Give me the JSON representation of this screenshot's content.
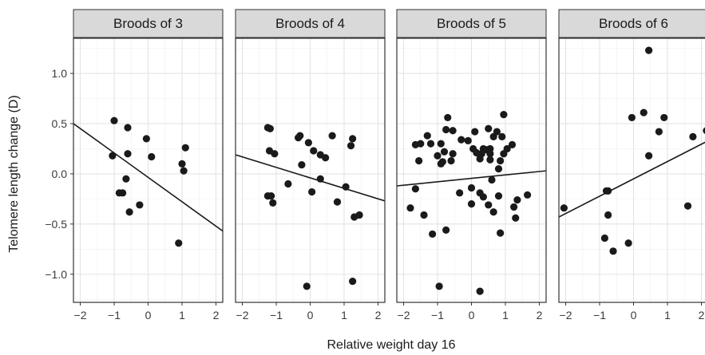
{
  "chart_data": {
    "type": "scatter",
    "xlabel": "Relative weight day 16",
    "ylabel": "Telomere length change (D)",
    "xlim": [
      -2.2,
      2.2
    ],
    "ylim": [
      -1.28,
      1.35
    ],
    "x_ticks": [
      -2,
      -1,
      0,
      1,
      2
    ],
    "y_ticks": [
      -1.0,
      -0.5,
      0.0,
      0.5,
      1.0
    ],
    "y_tick_labels": [
      "-1.0",
      "-0.5",
      "0.0",
      "0.5",
      "1.0"
    ],
    "grid": true,
    "panels": [
      {
        "title": "Broods of 3",
        "points": [
          [
            -1.0,
            0.53
          ],
          [
            -0.6,
            0.46
          ],
          [
            -0.05,
            0.35
          ],
          [
            -1.05,
            0.18
          ],
          [
            -0.6,
            0.2
          ],
          [
            0.1,
            0.17
          ],
          [
            1.1,
            0.26
          ],
          [
            1.0,
            0.1
          ],
          [
            1.05,
            0.03
          ],
          [
            -0.65,
            -0.05
          ],
          [
            -0.85,
            -0.19
          ],
          [
            -0.75,
            -0.19
          ],
          [
            -0.25,
            -0.31
          ],
          [
            -0.55,
            -0.38
          ],
          [
            0.9,
            -0.69
          ]
        ],
        "fit": [
          [
            -2.2,
            0.5
          ],
          [
            2.2,
            -0.57
          ]
        ]
      },
      {
        "title": "Broods of 4",
        "points": [
          [
            -1.25,
            0.46
          ],
          [
            -1.18,
            0.45
          ],
          [
            -0.3,
            0.38
          ],
          [
            -0.35,
            0.36
          ],
          [
            -0.05,
            0.31
          ],
          [
            0.65,
            0.38
          ],
          [
            1.25,
            0.35
          ],
          [
            1.2,
            0.28
          ],
          [
            -1.2,
            0.23
          ],
          [
            -1.05,
            0.2
          ],
          [
            0.1,
            0.23
          ],
          [
            0.3,
            0.19
          ],
          [
            0.45,
            0.16
          ],
          [
            -0.25,
            0.09
          ],
          [
            -0.65,
            -0.1
          ],
          [
            0.3,
            -0.05
          ],
          [
            1.05,
            -0.13
          ],
          [
            -1.25,
            -0.22
          ],
          [
            -1.15,
            -0.22
          ],
          [
            -1.1,
            -0.29
          ],
          [
            0.05,
            -0.18
          ],
          [
            0.8,
            -0.28
          ],
          [
            1.3,
            -0.43
          ],
          [
            1.45,
            -0.41
          ],
          [
            -0.1,
            -1.12
          ],
          [
            1.25,
            -1.07
          ]
        ],
        "fit": [
          [
            -2.2,
            0.19
          ],
          [
            2.2,
            -0.27
          ]
        ]
      },
      {
        "title": "Broods of 5",
        "points": [
          [
            -0.7,
            0.56
          ],
          [
            0.95,
            0.59
          ],
          [
            -0.75,
            0.44
          ],
          [
            -0.55,
            0.43
          ],
          [
            0.1,
            0.42
          ],
          [
            0.5,
            0.45
          ],
          [
            0.75,
            0.42
          ],
          [
            -1.3,
            0.38
          ],
          [
            0.65,
            0.37
          ],
          [
            0.9,
            0.37
          ],
          [
            -0.3,
            0.34
          ],
          [
            -0.1,
            0.33
          ],
          [
            0.05,
            0.25
          ],
          [
            -1.65,
            0.29
          ],
          [
            -1.5,
            0.3
          ],
          [
            -1.2,
            0.3
          ],
          [
            -0.9,
            0.3
          ],
          [
            0.15,
            0.21
          ],
          [
            0.45,
            0.24
          ],
          [
            0.55,
            0.25
          ],
          [
            0.35,
            0.25
          ],
          [
            1.05,
            0.25
          ],
          [
            1.2,
            0.29
          ],
          [
            -0.8,
            0.22
          ],
          [
            -1.0,
            0.18
          ],
          [
            0.3,
            0.2
          ],
          [
            0.55,
            0.2
          ],
          [
            0.95,
            0.2
          ],
          [
            -0.85,
            0.12
          ],
          [
            -0.6,
            0.13
          ],
          [
            0.55,
            0.14
          ],
          [
            0.85,
            0.13
          ],
          [
            -1.55,
            0.13
          ],
          [
            0.8,
            0.05
          ],
          [
            -0.9,
            0.1
          ],
          [
            -0.55,
            0.2
          ],
          [
            0.25,
            0.15
          ],
          [
            0.6,
            -0.06
          ],
          [
            -1.65,
            -0.15
          ],
          [
            -0.35,
            -0.19
          ],
          [
            0.0,
            -0.14
          ],
          [
            0.25,
            -0.19
          ],
          [
            0.35,
            -0.23
          ],
          [
            0.8,
            -0.22
          ],
          [
            1.65,
            -0.21
          ],
          [
            1.35,
            -0.26
          ],
          [
            1.25,
            -0.33
          ],
          [
            -1.8,
            -0.34
          ],
          [
            0.0,
            -0.3
          ],
          [
            0.5,
            -0.31
          ],
          [
            0.65,
            -0.38
          ],
          [
            1.3,
            -0.44
          ],
          [
            -1.4,
            -0.41
          ],
          [
            -1.15,
            -0.6
          ],
          [
            -0.75,
            -0.56
          ],
          [
            0.85,
            -0.59
          ],
          [
            -0.95,
            -1.12
          ],
          [
            0.25,
            -1.17
          ]
        ],
        "fit": [
          [
            -2.2,
            -0.12
          ],
          [
            2.2,
            0.03
          ]
        ]
      },
      {
        "title": "Broods of 6",
        "points": [
          [
            0.45,
            1.23
          ],
          [
            0.3,
            0.61
          ],
          [
            0.9,
            0.56
          ],
          [
            -0.05,
            0.56
          ],
          [
            0.75,
            0.42
          ],
          [
            2.15,
            0.43
          ],
          [
            1.75,
            0.37
          ],
          [
            0.45,
            0.18
          ],
          [
            -0.8,
            -0.17
          ],
          [
            -0.75,
            -0.17
          ],
          [
            -0.75,
            -0.41
          ],
          [
            -2.05,
            -0.34
          ],
          [
            1.6,
            -0.32
          ],
          [
            -0.85,
            -0.64
          ],
          [
            -0.15,
            -0.69
          ],
          [
            -0.6,
            -0.77
          ]
        ],
        "fit": [
          [
            -2.2,
            -0.43
          ],
          [
            2.2,
            0.33
          ]
        ]
      }
    ]
  }
}
